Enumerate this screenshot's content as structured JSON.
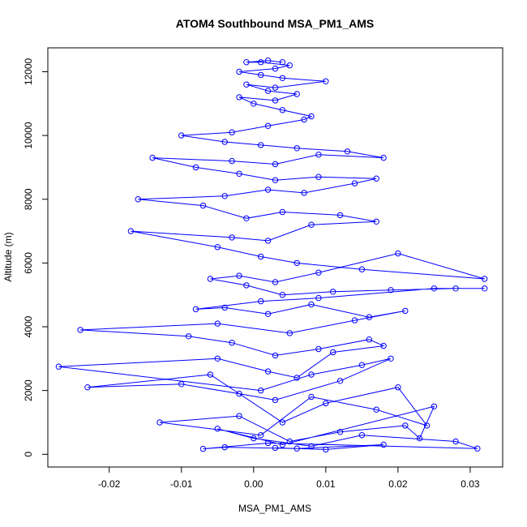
{
  "chart_data": {
    "type": "line",
    "title": "ATOM4 Southbound MSA_PM1_AMS",
    "xlabel": "MSA_PM1_AMS",
    "ylabel": "Altitude (m)",
    "xlim": [
      -0.0285,
      0.0345
    ],
    "ylim": [
      -400,
      12750
    ],
    "xticks": [
      -0.02,
      -0.01,
      0,
      0.01,
      0.02,
      0.03
    ],
    "xtick_labels": [
      "-0.02",
      "-0.01",
      "0.00",
      "0.01",
      "0.02",
      "0.03"
    ],
    "yticks": [
      0,
      2000,
      4000,
      6000,
      8000,
      10000,
      12000
    ],
    "ytick_labels": [
      "0",
      "2000",
      "4000",
      "6000",
      "8000",
      "10000",
      "12000"
    ],
    "grid": false,
    "legend": "none",
    "series_style": {
      "color": "#0000ff",
      "marker": "open-circle",
      "line": "solid"
    },
    "series": [
      {
        "x": [
          0.003,
          0.01,
          0.018,
          0.006,
          -0.004,
          -0.007,
          0.002,
          0.031,
          0.028,
          0.015,
          0.008,
          0.0,
          -0.005,
          0.004,
          0.025,
          0.023,
          0.021,
          0.012,
          0.005,
          -0.002,
          -0.013,
          0.001,
          0.008,
          0.017,
          0.024,
          0.02,
          0.01,
          0.004,
          -0.006,
          -0.023,
          -0.01,
          -0.002,
          0.003,
          0.012,
          0.019,
          0.015,
          0.008,
          0.001,
          -0.027,
          -0.005,
          0.002,
          0.006,
          0.011,
          0.018,
          0.016,
          0.009,
          0.003,
          -0.003,
          -0.009,
          -0.024,
          -0.005,
          0.005,
          0.014,
          0.021,
          0.016,
          0.008,
          0.002,
          -0.004,
          -0.008,
          0.001,
          0.009,
          0.025,
          0.032,
          0.028,
          0.019,
          0.011,
          0.004,
          -0.001,
          -0.006,
          -0.002,
          0.003,
          0.009,
          0.02,
          0.032,
          0.015,
          0.006,
          0.001,
          -0.005,
          -0.017,
          -0.003,
          0.002,
          0.008,
          0.017,
          0.012,
          0.004,
          -0.001,
          -0.007,
          -0.016,
          -0.004,
          0.002,
          0.007,
          0.014,
          0.017,
          0.009,
          0.003,
          -0.002,
          -0.008,
          -0.014,
          -0.003,
          0.003,
          0.009,
          0.018,
          0.013,
          0.006,
          0.001,
          -0.004,
          -0.01,
          -0.003,
          0.002,
          0.007,
          0.008,
          0.004,
          0.0,
          -0.002,
          0.003,
          0.006,
          0.002,
          -0.001,
          0.003,
          0.01,
          0.004,
          0.001,
          -0.002,
          0.003,
          0.005,
          0.001,
          -0.001,
          0.002,
          0.004
        ],
        "y": [
          200,
          150,
          300,
          180,
          220,
          170,
          350,
          180,
          400,
          600,
          250,
          500,
          800,
          300,
          1500,
          500,
          900,
          700,
          400,
          1200,
          1000,
          600,
          1800,
          1400,
          900,
          2100,
          1600,
          1000,
          2500,
          2100,
          2200,
          1900,
          1700,
          2300,
          3000,
          2800,
          2500,
          2000,
          2750,
          3000,
          2600,
          2400,
          3200,
          3400,
          3600,
          3300,
          3100,
          3500,
          3700,
          3900,
          4100,
          3800,
          4200,
          4500,
          4300,
          4700,
          4400,
          4600,
          4550,
          4800,
          4900,
          5200,
          5200,
          5200,
          5150,
          5100,
          5000,
          5300,
          5500,
          5600,
          5400,
          5700,
          6300,
          5500,
          5800,
          6000,
          6200,
          6500,
          7000,
          6800,
          6700,
          7200,
          7300,
          7500,
          7600,
          7400,
          7800,
          8000,
          8100,
          8300,
          8200,
          8500,
          8650,
          8700,
          8600,
          8800,
          9000,
          9300,
          9200,
          9100,
          9400,
          9300,
          9500,
          9600,
          9700,
          9800,
          10000,
          10100,
          10300,
          10500,
          10600,
          10800,
          11000,
          11200,
          11100,
          11300,
          11400,
          11600,
          11500,
          11700,
          11800,
          11900,
          12000,
          12100,
          12200,
          12300,
          12300,
          12350,
          12300
        ]
      }
    ]
  }
}
